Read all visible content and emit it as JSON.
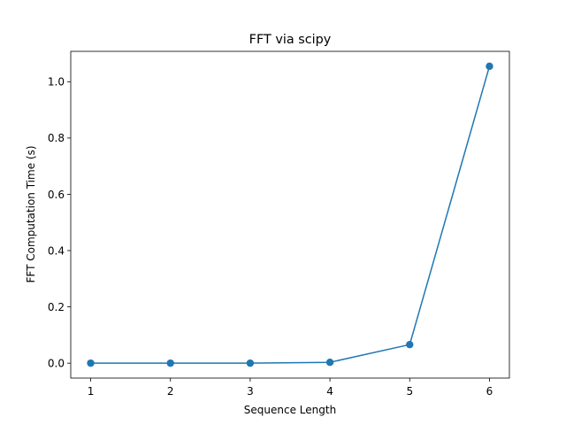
{
  "chart_data": {
    "type": "line",
    "title": "FFT via scipy",
    "xlabel": "Sequence Length",
    "ylabel": "FFT Computation Time (s)",
    "xlim": [
      0.75,
      6.25
    ],
    "ylim": [
      -0.053,
      1.108
    ],
    "xticks": [
      1,
      2,
      3,
      4,
      5,
      6
    ],
    "yticks": [
      0.0,
      0.2,
      0.4,
      0.6,
      0.8,
      1.0
    ],
    "ytick_labels": [
      "0.0",
      "0.2",
      "0.4",
      "0.6",
      "0.8",
      "1.0"
    ],
    "grid": false,
    "series": [
      {
        "x": [
          1,
          2,
          3,
          4,
          5,
          6
        ],
        "values": [
          0.0,
          0.0,
          0.0,
          0.003,
          0.066,
          1.055
        ],
        "color": "#1f77b4",
        "marker": "circle"
      }
    ]
  }
}
